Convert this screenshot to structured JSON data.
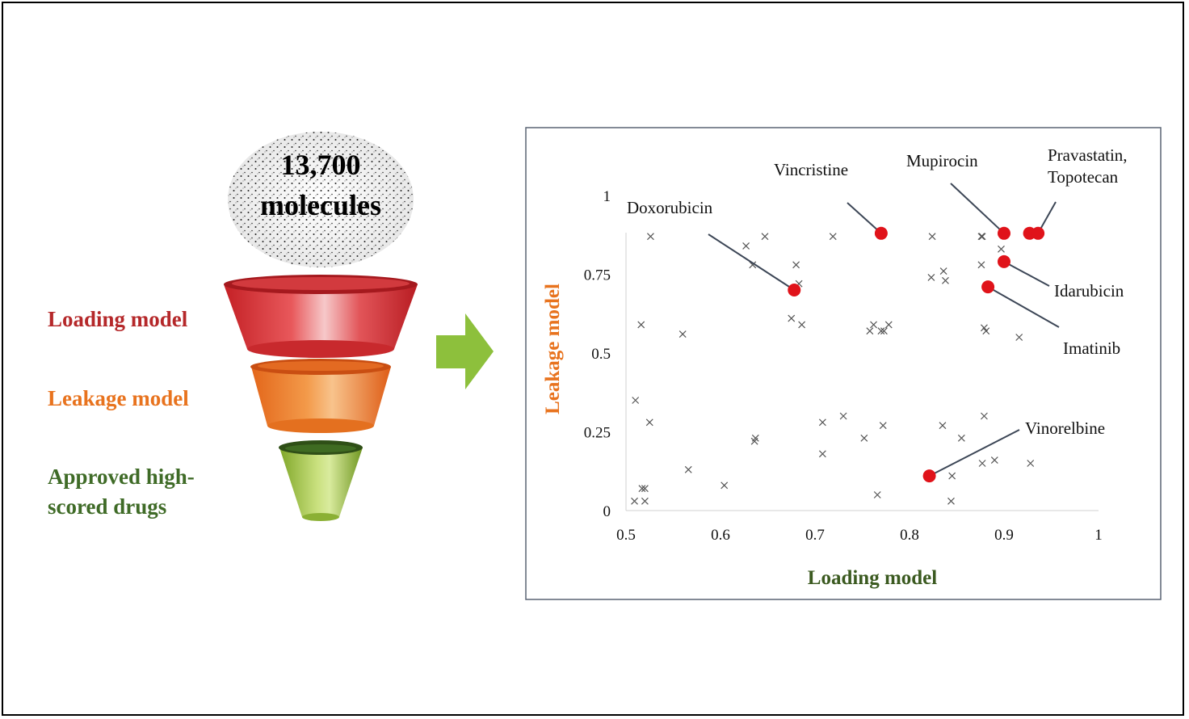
{
  "funnel": {
    "bubble_count": "13,700",
    "bubble_unit": "molecules",
    "stage_labels": {
      "loading": "Loading model",
      "leakage": "Leakage model",
      "approved_line1": "Approved high-",
      "approved_line2": "scored drugs"
    },
    "colors": {
      "loading": "#b5282a",
      "leakage": "#e8731e",
      "approved": "#3f6b27",
      "arrow": "#8dc03c"
    }
  },
  "chart_data": {
    "type": "scatter",
    "xlabel": "Loading model",
    "ylabel": "Leakage model",
    "xlim": [
      0.5,
      1
    ],
    "ylim": [
      0,
      1
    ],
    "xticks": [
      "0.5",
      "0.6",
      "0.7",
      "0.8",
      "0.9",
      "1"
    ],
    "yticks": [
      "0",
      "0.25",
      "0.5",
      "0.75",
      "1"
    ],
    "grid": false,
    "colors": {
      "marker": "#555555",
      "highlight": "#e0131a",
      "xlabel": "#3b5a20",
      "ylabel": "#e8731e"
    },
    "series": [
      {
        "marker": "x",
        "points": [
          [
            0.526,
            0.87
          ],
          [
            0.627,
            0.84
          ],
          [
            0.647,
            0.87
          ],
          [
            0.719,
            0.87
          ],
          [
            0.824,
            0.87
          ],
          [
            0.876,
            0.87
          ],
          [
            0.877,
            0.87
          ],
          [
            0.634,
            0.78
          ],
          [
            0.68,
            0.78
          ],
          [
            0.683,
            0.72
          ],
          [
            0.876,
            0.78
          ],
          [
            0.897,
            0.83
          ],
          [
            0.823,
            0.74
          ],
          [
            0.836,
            0.76
          ],
          [
            0.838,
            0.73
          ],
          [
            0.516,
            0.59
          ],
          [
            0.56,
            0.56
          ],
          [
            0.675,
            0.61
          ],
          [
            0.686,
            0.59
          ],
          [
            0.758,
            0.57
          ],
          [
            0.762,
            0.59
          ],
          [
            0.77,
            0.57
          ],
          [
            0.773,
            0.57
          ],
          [
            0.778,
            0.59
          ],
          [
            0.879,
            0.58
          ],
          [
            0.881,
            0.57
          ],
          [
            0.916,
            0.55
          ],
          [
            0.51,
            0.35
          ],
          [
            0.525,
            0.28
          ],
          [
            0.636,
            0.22
          ],
          [
            0.637,
            0.23
          ],
          [
            0.708,
            0.28
          ],
          [
            0.708,
            0.18
          ],
          [
            0.73,
            0.3
          ],
          [
            0.752,
            0.23
          ],
          [
            0.772,
            0.27
          ],
          [
            0.835,
            0.27
          ],
          [
            0.855,
            0.23
          ],
          [
            0.879,
            0.3
          ],
          [
            0.877,
            0.15
          ],
          [
            0.89,
            0.16
          ],
          [
            0.928,
            0.15
          ],
          [
            0.566,
            0.13
          ],
          [
            0.604,
            0.08
          ],
          [
            0.517,
            0.07
          ],
          [
            0.52,
            0.07
          ],
          [
            0.766,
            0.05
          ],
          [
            0.845,
            0.11
          ],
          [
            0.509,
            0.03
          ],
          [
            0.52,
            0.03
          ],
          [
            0.844,
            0.03
          ]
        ]
      },
      {
        "marker": "dot",
        "points": [
          [
            0.678,
            0.7
          ],
          [
            0.77,
            0.88
          ],
          [
            0.9,
            0.88
          ],
          [
            0.927,
            0.88
          ],
          [
            0.936,
            0.88
          ],
          [
            0.9,
            0.79
          ],
          [
            0.883,
            0.71
          ],
          [
            0.821,
            0.11
          ]
        ]
      }
    ],
    "annotations": [
      {
        "text": "Doxorubicin",
        "point": [
          0.678,
          0.7
        ]
      },
      {
        "text": "Vincristine",
        "point": [
          0.77,
          0.88
        ]
      },
      {
        "text": "Mupirocin",
        "point": [
          0.9,
          0.88
        ]
      },
      {
        "text": "Pravastatin,",
        "text2": "Topotecan",
        "point": [
          0.936,
          0.88
        ]
      },
      {
        "text": "Idarubicin",
        "point": [
          0.9,
          0.79
        ]
      },
      {
        "text": "Imatinib",
        "point": [
          0.883,
          0.71
        ]
      },
      {
        "text": "Vinorelbine",
        "point": [
          0.821,
          0.11
        ]
      }
    ]
  }
}
